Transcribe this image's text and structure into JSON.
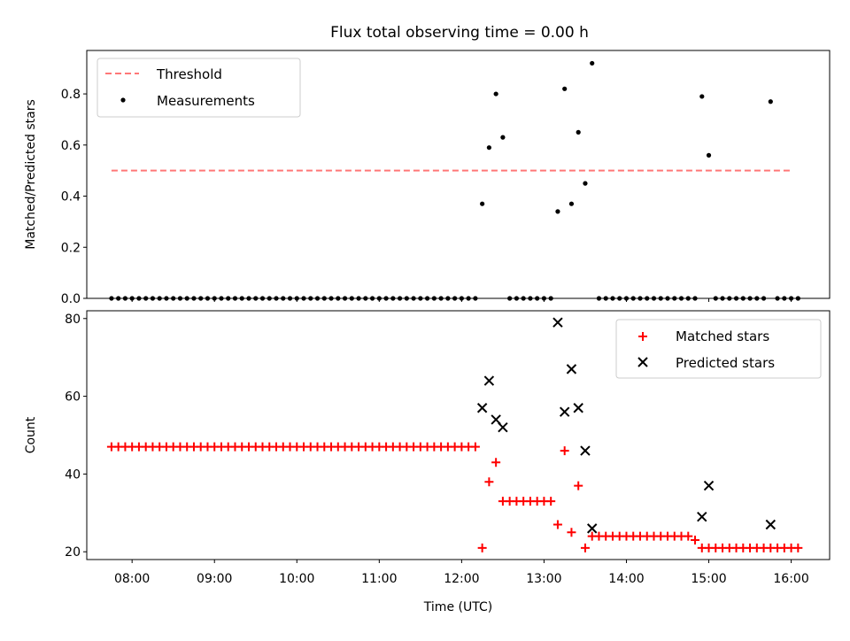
{
  "title": "Flux total observing time = 0.00 h",
  "colors": {
    "threshold": "#ff7777",
    "measurements": "#000000",
    "matched": "#ff0000",
    "predicted": "#000000"
  },
  "chart_data": [
    {
      "type": "scatter",
      "panel": "top",
      "xlabel": "",
      "ylabel": "Matched/Predicted stars",
      "ylim": [
        0,
        0.97
      ],
      "yticks": [
        0.0,
        0.2,
        0.4,
        0.6,
        0.8
      ],
      "ytick_labels": [
        "0.0",
        "0.2",
        "0.4",
        "0.6",
        "0.8"
      ],
      "xlim": [
        "07:27",
        "16:28"
      ],
      "legend": {
        "position": "top-left",
        "entries": [
          "Threshold",
          "Measurements"
        ]
      },
      "series": [
        {
          "name": "Threshold",
          "kind": "line",
          "style": "dashed",
          "x": [
            "07:45",
            "16:00"
          ],
          "y": [
            0.5,
            0.5
          ]
        },
        {
          "name": "Measurements",
          "kind": "scatter",
          "x": [
            "07:45",
            "07:50",
            "07:55",
            "08:00",
            "08:05",
            "08:10",
            "08:15",
            "08:20",
            "08:25",
            "08:30",
            "08:35",
            "08:40",
            "08:45",
            "08:50",
            "08:55",
            "09:00",
            "09:05",
            "09:10",
            "09:15",
            "09:20",
            "09:25",
            "09:30",
            "09:35",
            "09:40",
            "09:45",
            "09:50",
            "09:55",
            "10:00",
            "10:05",
            "10:10",
            "10:15",
            "10:20",
            "10:25",
            "10:30",
            "10:35",
            "10:40",
            "10:45",
            "10:50",
            "10:55",
            "11:00",
            "11:05",
            "11:10",
            "11:15",
            "11:20",
            "11:25",
            "11:30",
            "11:35",
            "11:40",
            "11:45",
            "11:50",
            "11:55",
            "12:00",
            "12:05",
            "12:10",
            "12:15",
            "12:20",
            "12:25",
            "12:30",
            "12:35",
            "12:40",
            "12:45",
            "12:50",
            "12:55",
            "13:00",
            "13:05",
            "13:10",
            "13:15",
            "13:20",
            "13:25",
            "13:30",
            "13:35",
            "13:40",
            "13:45",
            "13:50",
            "13:55",
            "14:00",
            "14:05",
            "14:10",
            "14:15",
            "14:20",
            "14:25",
            "14:30",
            "14:35",
            "14:40",
            "14:45",
            "14:50",
            "14:55",
            "15:00",
            "15:05",
            "15:10",
            "15:15",
            "15:20",
            "15:25",
            "15:30",
            "15:35",
            "15:40",
            "15:45",
            "15:50",
            "15:55",
            "16:00",
            "16:05"
          ],
          "y": [
            0,
            0,
            0,
            0,
            0,
            0,
            0,
            0,
            0,
            0,
            0,
            0,
            0,
            0,
            0,
            0,
            0,
            0,
            0,
            0,
            0,
            0,
            0,
            0,
            0,
            0,
            0,
            0,
            0,
            0,
            0,
            0,
            0,
            0,
            0,
            0,
            0,
            0,
            0,
            0,
            0,
            0,
            0,
            0,
            0,
            0,
            0,
            0,
            0,
            0,
            0,
            0,
            0,
            0,
            0.37,
            0.59,
            0.8,
            0.63,
            0,
            0,
            0,
            0,
            0,
            0,
            0,
            0.34,
            0.82,
            0.37,
            0.65,
            0.45,
            0.92,
            0,
            0,
            0,
            0,
            0,
            0,
            0,
            0,
            0,
            0,
            0,
            0,
            0,
            0,
            0,
            0.79,
            0.56,
            0,
            0,
            0,
            0,
            0,
            0,
            0,
            0,
            0.77,
            0,
            0,
            0,
            0
          ]
        }
      ]
    },
    {
      "type": "scatter",
      "panel": "bottom",
      "xlabel": "Time (UTC)",
      "ylabel": "Count",
      "ylim": [
        18,
        82
      ],
      "yticks": [
        20,
        40,
        60,
        80
      ],
      "ytick_labels": [
        "20",
        "40",
        "60",
        "80"
      ],
      "xlim": [
        "07:27",
        "16:28"
      ],
      "xticks": [
        "08:00",
        "09:00",
        "10:00",
        "11:00",
        "12:00",
        "13:00",
        "14:00",
        "15:00",
        "16:00"
      ],
      "xtick_labels": [
        "08:00",
        "09:00",
        "10:00",
        "11:00",
        "12:00",
        "13:00",
        "14:00",
        "15:00",
        "16:00"
      ],
      "legend": {
        "position": "top-right",
        "entries": [
          "Matched stars",
          "Predicted stars"
        ]
      },
      "series": [
        {
          "name": "Matched stars",
          "marker": "+",
          "x": [
            "07:45",
            "07:50",
            "07:55",
            "08:00",
            "08:05",
            "08:10",
            "08:15",
            "08:20",
            "08:25",
            "08:30",
            "08:35",
            "08:40",
            "08:45",
            "08:50",
            "08:55",
            "09:00",
            "09:05",
            "09:10",
            "09:15",
            "09:20",
            "09:25",
            "09:30",
            "09:35",
            "09:40",
            "09:45",
            "09:50",
            "09:55",
            "10:00",
            "10:05",
            "10:10",
            "10:15",
            "10:20",
            "10:25",
            "10:30",
            "10:35",
            "10:40",
            "10:45",
            "10:50",
            "10:55",
            "11:00",
            "11:05",
            "11:10",
            "11:15",
            "11:20",
            "11:25",
            "11:30",
            "11:35",
            "11:40",
            "11:45",
            "11:50",
            "11:55",
            "12:00",
            "12:05",
            "12:10",
            "12:15",
            "12:20",
            "12:25",
            "12:30",
            "12:35",
            "12:40",
            "12:45",
            "12:50",
            "12:55",
            "13:00",
            "13:05",
            "13:10",
            "13:15",
            "13:20",
            "13:25",
            "13:30",
            "13:35",
            "13:40",
            "13:45",
            "13:50",
            "13:55",
            "14:00",
            "14:05",
            "14:10",
            "14:15",
            "14:20",
            "14:25",
            "14:30",
            "14:35",
            "14:40",
            "14:45",
            "14:50",
            "14:55",
            "15:00",
            "15:05",
            "15:10",
            "15:15",
            "15:20",
            "15:25",
            "15:30",
            "15:35",
            "15:40",
            "15:45",
            "15:50",
            "15:55",
            "16:00",
            "16:05"
          ],
          "y": [
            47,
            47,
            47,
            47,
            47,
            47,
            47,
            47,
            47,
            47,
            47,
            47,
            47,
            47,
            47,
            47,
            47,
            47,
            47,
            47,
            47,
            47,
            47,
            47,
            47,
            47,
            47,
            47,
            47,
            47,
            47,
            47,
            47,
            47,
            47,
            47,
            47,
            47,
            47,
            47,
            47,
            47,
            47,
            47,
            47,
            47,
            47,
            47,
            47,
            47,
            47,
            47,
            47,
            47,
            21,
            38,
            43,
            33,
            33,
            33,
            33,
            33,
            33,
            33,
            33,
            27,
            46,
            25,
            37,
            21,
            24,
            24,
            24,
            24,
            24,
            24,
            24,
            24,
            24,
            24,
            24,
            24,
            24,
            24,
            24,
            23,
            21,
            21,
            21,
            21,
            21,
            21,
            21,
            21,
            21,
            21,
            21,
            21,
            21,
            21,
            21
          ]
        },
        {
          "name": "Predicted stars",
          "marker": "x",
          "x": [
            "12:15",
            "12:20",
            "12:25",
            "12:30",
            "13:10",
            "13:15",
            "13:20",
            "13:25",
            "13:30",
            "13:35",
            "14:55",
            "15:00",
            "15:45"
          ],
          "y": [
            57,
            64,
            54,
            52,
            79,
            56,
            67,
            57,
            46,
            26,
            29,
            37,
            27
          ]
        }
      ]
    }
  ]
}
